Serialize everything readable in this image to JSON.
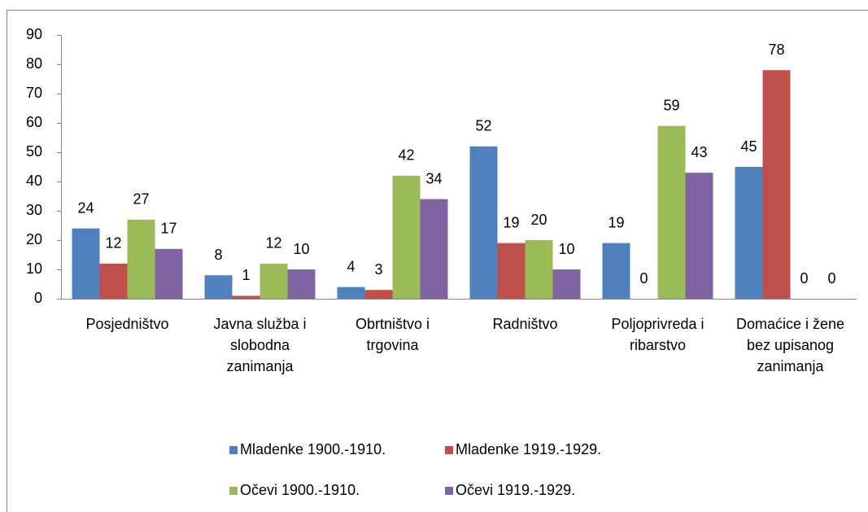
{
  "chart_data": {
    "type": "bar",
    "categories": [
      "Posjedništvo",
      "Javna služba i slobodna zanimanja",
      "Obrtništvo i trgovina",
      "Radništvo",
      "Poljoprivreda i ribarstvo",
      "Domaćice i žene bez upisanog zanimanja"
    ],
    "series": [
      {
        "name": "Mladenke 1900.-1910.",
        "color": "#4f81bd",
        "values": [
          24,
          8,
          4,
          52,
          19,
          45
        ]
      },
      {
        "name": "Mladenke 1919.-1929.",
        "color": "#c0504d",
        "values": [
          12,
          1,
          3,
          19,
          0,
          78
        ]
      },
      {
        "name": "Očevi 1900.-1910.",
        "color": "#9bbb59",
        "values": [
          27,
          12,
          42,
          20,
          59,
          0
        ]
      },
      {
        "name": "Očevi 1919.-1929.",
        "color": "#8064a2",
        "values": [
          17,
          10,
          34,
          10,
          43,
          0
        ]
      }
    ],
    "ylim": [
      0,
      90
    ],
    "yticks": [
      0,
      10,
      20,
      30,
      40,
      50,
      60,
      70,
      80,
      90
    ],
    "grid": false,
    "legend": "bottom"
  }
}
